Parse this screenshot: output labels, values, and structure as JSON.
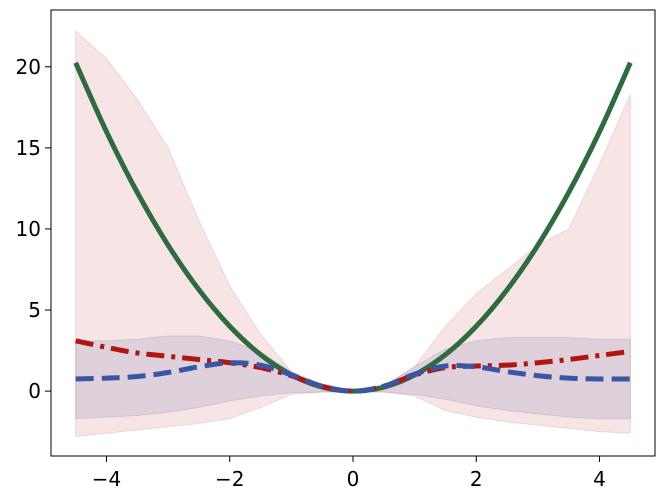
{
  "chart_data": {
    "type": "line",
    "title": "",
    "xlabel": "",
    "ylabel": "",
    "xlim": [
      -4.9,
      4.9
    ],
    "ylim": [
      -4.0,
      23.5
    ],
    "grid": false,
    "x_ticks": [
      {
        "value": -4,
        "label": "−4"
      },
      {
        "value": -2,
        "label": "−2"
      },
      {
        "value": 0,
        "label": "0"
      },
      {
        "value": 2,
        "label": "2"
      },
      {
        "value": 4,
        "label": "4"
      }
    ],
    "y_ticks": [
      {
        "value": 0,
        "label": "0"
      },
      {
        "value": 5,
        "label": "5"
      },
      {
        "value": 10,
        "label": "10"
      },
      {
        "value": 15,
        "label": "15"
      },
      {
        "value": 20,
        "label": "20"
      }
    ],
    "bands": [
      {
        "color": "#d87b7b",
        "opacity": 0.2,
        "x": [
          -4.5,
          -4.0,
          -3.5,
          -3.0,
          -2.5,
          -2.0,
          -1.5,
          -1.0,
          -0.5,
          0.0,
          0.5,
          1.0,
          1.5,
          2.0,
          2.5,
          3.0,
          3.5,
          4.0,
          4.5
        ],
        "upper": [
          22.2,
          20.5,
          18.0,
          15.0,
          10.5,
          6.5,
          3.5,
          1.2,
          0.3,
          0.05,
          0.3,
          1.5,
          4.0,
          6.0,
          7.5,
          9.0,
          10.0,
          14.0,
          18.3
        ],
        "lower": [
          -2.8,
          -2.6,
          -2.4,
          -2.2,
          -2.0,
          -1.7,
          -1.0,
          -0.2,
          -0.05,
          -0.05,
          -0.05,
          -0.3,
          -1.2,
          -1.6,
          -1.9,
          -2.1,
          -2.3,
          -2.5,
          -2.6
        ]
      },
      {
        "color": "#6f78b0",
        "opacity": 0.18,
        "x": [
          -4.5,
          -4.0,
          -3.5,
          -3.0,
          -2.5,
          -2.0,
          -1.5,
          -1.0,
          -0.5,
          0.0,
          0.5,
          1.0,
          1.5,
          2.0,
          2.5,
          3.0,
          3.5,
          4.0,
          4.5
        ],
        "upper": [
          3.1,
          3.1,
          3.2,
          3.4,
          3.4,
          3.1,
          2.4,
          1.2,
          0.3,
          0.05,
          0.3,
          1.5,
          2.6,
          3.1,
          3.3,
          3.3,
          3.3,
          3.2,
          3.2
        ],
        "lower": [
          -1.7,
          -1.6,
          -1.5,
          -1.3,
          -1.0,
          -0.6,
          -0.3,
          -0.1,
          -0.05,
          -0.05,
          -0.05,
          -0.2,
          -0.5,
          -0.9,
          -1.2,
          -1.4,
          -1.6,
          -1.7,
          -1.7
        ]
      }
    ],
    "series": [
      {
        "color": "#2e6b3f",
        "dash": "solid",
        "width": 5,
        "x": [
          -4.5,
          -4.0,
          -3.5,
          -3.0,
          -2.5,
          -2.0,
          -1.5,
          -1.0,
          -0.5,
          0.0,
          0.5,
          1.0,
          1.5,
          2.0,
          2.5,
          3.0,
          3.5,
          4.0,
          4.5
        ],
        "values": [
          20.25,
          16.0,
          12.25,
          9.0,
          6.25,
          4.0,
          2.25,
          1.0,
          0.25,
          0.0,
          0.25,
          1.0,
          2.25,
          4.0,
          6.25,
          9.0,
          12.25,
          16.0,
          20.25
        ]
      },
      {
        "color": "#b2150f",
        "dash": "dashdot",
        "width": 5,
        "x": [
          -4.5,
          -4.0,
          -3.5,
          -3.0,
          -2.5,
          -2.0,
          -1.5,
          -1.0,
          -0.5,
          0.0,
          0.5,
          1.0,
          1.5,
          2.0,
          2.5,
          3.0,
          3.5,
          4.0,
          4.5
        ],
        "values": [
          3.1,
          2.7,
          2.35,
          2.15,
          1.95,
          1.75,
          1.45,
          0.95,
          0.3,
          0.0,
          0.3,
          1.0,
          1.45,
          1.55,
          1.6,
          1.75,
          1.95,
          2.2,
          2.45
        ]
      },
      {
        "color": "#3a55a4",
        "dash": "dashed",
        "width": 5,
        "x": [
          -4.5,
          -4.0,
          -3.5,
          -3.0,
          -2.5,
          -2.0,
          -1.5,
          -1.0,
          -0.5,
          0.0,
          0.5,
          1.0,
          1.5,
          2.0,
          2.5,
          3.0,
          3.5,
          4.0,
          4.5
        ],
        "values": [
          0.75,
          0.8,
          0.9,
          1.15,
          1.5,
          1.75,
          1.6,
          1.0,
          0.3,
          0.0,
          0.3,
          1.05,
          1.55,
          1.5,
          1.2,
          0.95,
          0.8,
          0.75,
          0.75
        ]
      }
    ]
  }
}
